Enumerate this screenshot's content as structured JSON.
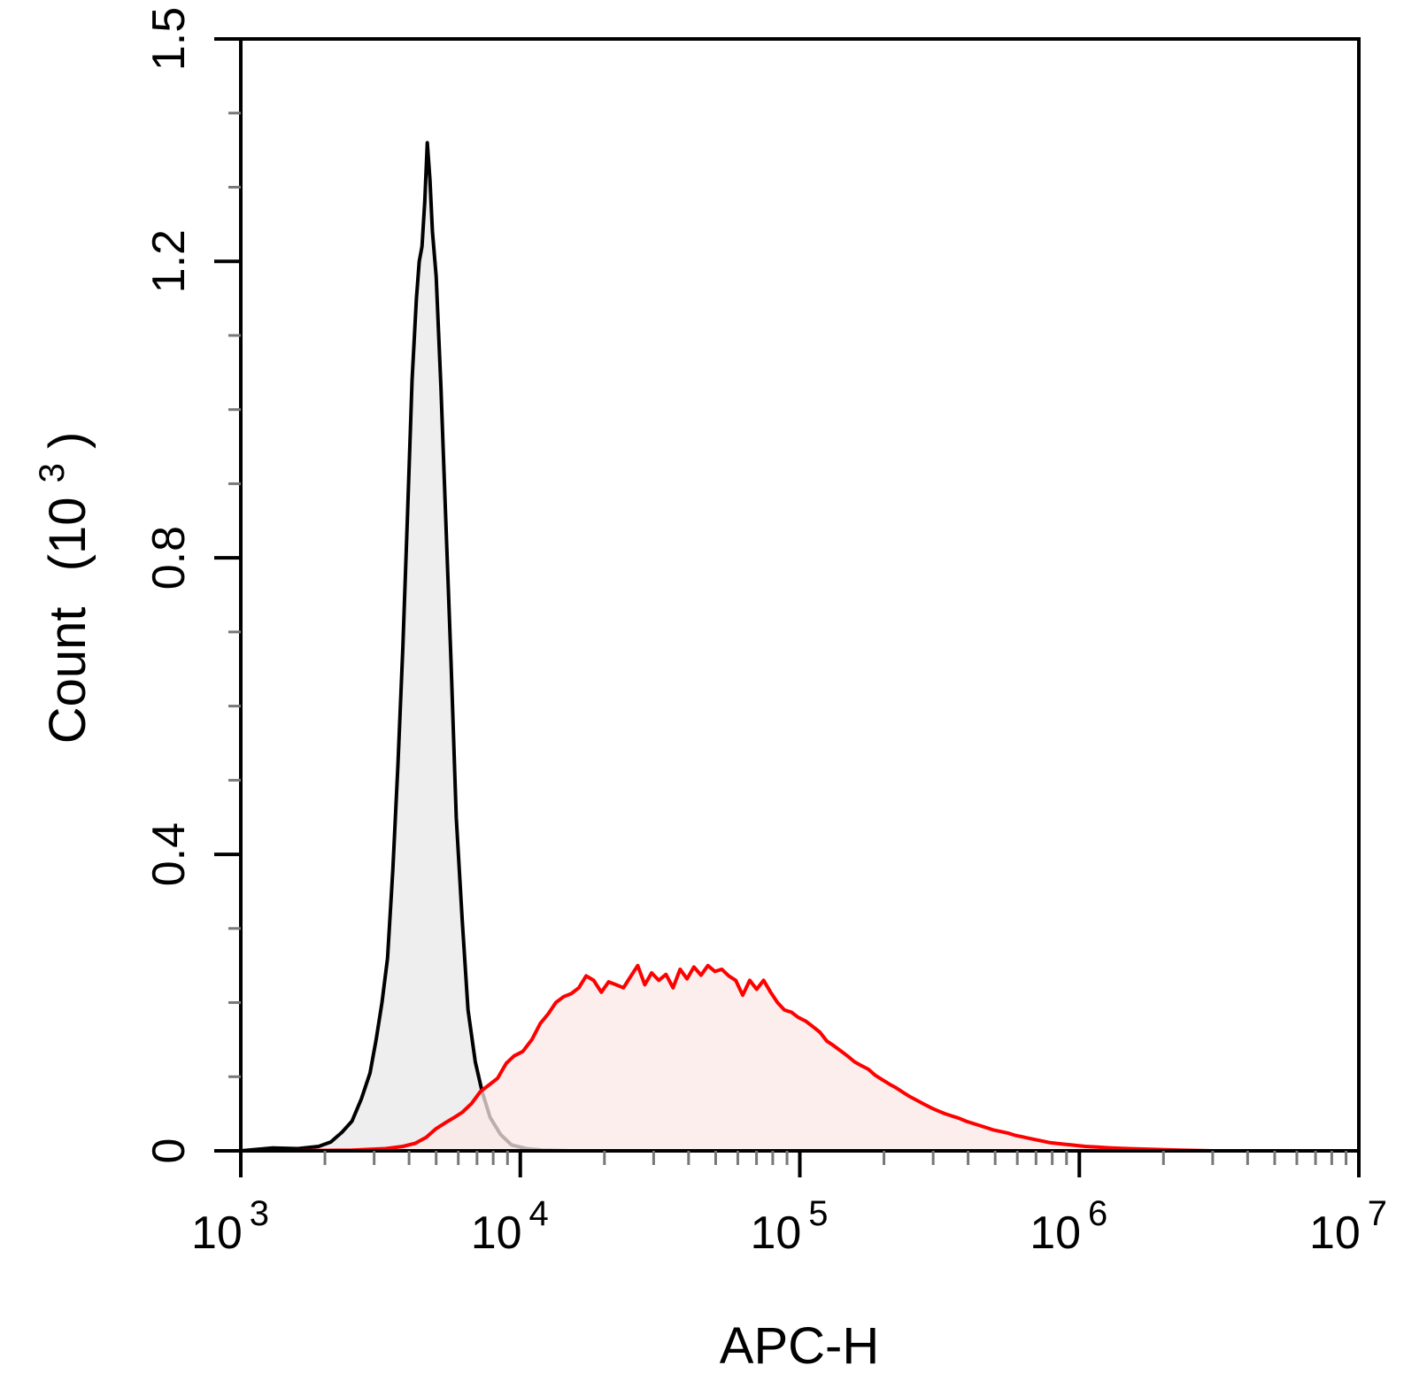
{
  "chart_data": {
    "type": "area",
    "xlabel": "APC-H",
    "ylabel": "Count",
    "ylabel_unit_prefix": "(10",
    "ylabel_unit_exponent": "3",
    "ylabel_unit_suffix": ")",
    "x_scale": "log",
    "xlim": [
      1000,
      10000000
    ],
    "ylim": [
      0,
      1.5
    ],
    "x_ticks": [
      {
        "base": "10",
        "exp": "3",
        "value": 1000
      },
      {
        "base": "10",
        "exp": "4",
        "value": 10000
      },
      {
        "base": "10",
        "exp": "5",
        "value": 100000
      },
      {
        "base": "10",
        "exp": "6",
        "value": 1000000
      },
      {
        "base": "10",
        "exp": "7",
        "value": 10000000
      }
    ],
    "y_ticks": [
      {
        "label": "0",
        "value": 0
      },
      {
        "label": "0.4",
        "value": 0.4
      },
      {
        "label": "0.8",
        "value": 0.8
      },
      {
        "label": "1.2",
        "value": 1.2
      },
      {
        "label": "1.5",
        "value": 1.5
      }
    ],
    "grid": false,
    "series": [
      {
        "stroke": "#000000",
        "fill": "#e8e8e8",
        "points": [
          [
            1000,
            0.0
          ],
          [
            1300,
            0.004
          ],
          [
            1600,
            0.003
          ],
          [
            1900,
            0.006
          ],
          [
            2100,
            0.012
          ],
          [
            2300,
            0.025
          ],
          [
            2500,
            0.04
          ],
          [
            2700,
            0.07
          ],
          [
            2900,
            0.105
          ],
          [
            3050,
            0.15
          ],
          [
            3200,
            0.2
          ],
          [
            3350,
            0.26
          ],
          [
            3500,
            0.38
          ],
          [
            3650,
            0.52
          ],
          [
            3800,
            0.68
          ],
          [
            3950,
            0.86
          ],
          [
            4100,
            1.04
          ],
          [
            4250,
            1.15
          ],
          [
            4350,
            1.2
          ],
          [
            4450,
            1.22
          ],
          [
            4550,
            1.28
          ],
          [
            4650,
            1.36
          ],
          [
            4750,
            1.31
          ],
          [
            4850,
            1.24
          ],
          [
            5000,
            1.18
          ],
          [
            5200,
            1.03
          ],
          [
            5400,
            0.86
          ],
          [
            5650,
            0.66
          ],
          [
            5900,
            0.45
          ],
          [
            6200,
            0.31
          ],
          [
            6500,
            0.19
          ],
          [
            6900,
            0.12
          ],
          [
            7300,
            0.08
          ],
          [
            7800,
            0.045
          ],
          [
            8500,
            0.022
          ],
          [
            9300,
            0.008
          ],
          [
            10500,
            0.003
          ],
          [
            12000,
            0.001
          ],
          [
            15000,
            0.0
          ]
        ]
      },
      {
        "stroke": "#ff0000",
        "fill": "#fce8e8",
        "points": [
          [
            1500,
            0.0
          ],
          [
            2500,
            0.001
          ],
          [
            3300,
            0.003
          ],
          [
            3800,
            0.006
          ],
          [
            4200,
            0.01
          ],
          [
            4600,
            0.018
          ],
          [
            5000,
            0.03
          ],
          [
            5400,
            0.038
          ],
          [
            5800,
            0.045
          ],
          [
            6200,
            0.052
          ],
          [
            6700,
            0.064
          ],
          [
            7200,
            0.08
          ],
          [
            7800,
            0.09
          ],
          [
            8300,
            0.098
          ],
          [
            8900,
            0.118
          ],
          [
            9500,
            0.128
          ],
          [
            10200,
            0.134
          ],
          [
            11000,
            0.15
          ],
          [
            11800,
            0.172
          ],
          [
            12600,
            0.185
          ],
          [
            13400,
            0.2
          ],
          [
            14300,
            0.208
          ],
          [
            15200,
            0.212
          ],
          [
            16200,
            0.22
          ],
          [
            17200,
            0.236
          ],
          [
            18300,
            0.23
          ],
          [
            19500,
            0.214
          ],
          [
            20700,
            0.228
          ],
          [
            22000,
            0.224
          ],
          [
            23400,
            0.22
          ],
          [
            24800,
            0.235
          ],
          [
            26300,
            0.25
          ],
          [
            27900,
            0.224
          ],
          [
            29500,
            0.24
          ],
          [
            31300,
            0.23
          ],
          [
            33200,
            0.238
          ],
          [
            35200,
            0.22
          ],
          [
            37300,
            0.245
          ],
          [
            39500,
            0.232
          ],
          [
            41800,
            0.248
          ],
          [
            44300,
            0.237
          ],
          [
            46900,
            0.25
          ],
          [
            49700,
            0.242
          ],
          [
            52600,
            0.245
          ],
          [
            55700,
            0.236
          ],
          [
            59000,
            0.23
          ],
          [
            62500,
            0.21
          ],
          [
            66200,
            0.23
          ],
          [
            70100,
            0.218
          ],
          [
            74200,
            0.23
          ],
          [
            78600,
            0.214
          ],
          [
            83200,
            0.2
          ],
          [
            88100,
            0.19
          ],
          [
            93300,
            0.187
          ],
          [
            98800,
            0.18
          ],
          [
            105000,
            0.175
          ],
          [
            111000,
            0.168
          ],
          [
            118000,
            0.16
          ],
          [
            125000,
            0.148
          ],
          [
            132000,
            0.142
          ],
          [
            140000,
            0.135
          ],
          [
            148000,
            0.128
          ],
          [
            157000,
            0.12
          ],
          [
            166000,
            0.115
          ],
          [
            176000,
            0.11
          ],
          [
            186000,
            0.102
          ],
          [
            197000,
            0.096
          ],
          [
            209000,
            0.09
          ],
          [
            221000,
            0.085
          ],
          [
            234000,
            0.079
          ],
          [
            248000,
            0.073
          ],
          [
            263000,
            0.068
          ],
          [
            278000,
            0.063
          ],
          [
            295000,
            0.058
          ],
          [
            312000,
            0.054
          ],
          [
            331000,
            0.05
          ],
          [
            350000,
            0.047
          ],
          [
            371000,
            0.044
          ],
          [
            393000,
            0.04
          ],
          [
            416000,
            0.037
          ],
          [
            441000,
            0.034
          ],
          [
            467000,
            0.031
          ],
          [
            495000,
            0.028
          ],
          [
            524000,
            0.026
          ],
          [
            555000,
            0.024
          ],
          [
            588000,
            0.021
          ],
          [
            623000,
            0.019
          ],
          [
            660000,
            0.017
          ],
          [
            699000,
            0.015
          ],
          [
            741000,
            0.013
          ],
          [
            785000,
            0.011
          ],
          [
            831000,
            0.01
          ],
          [
            880000,
            0.009
          ],
          [
            933000,
            0.008
          ],
          [
            988000,
            0.007
          ],
          [
            1050000,
            0.006
          ],
          [
            1160000,
            0.005
          ],
          [
            1300000,
            0.004
          ],
          [
            1500000,
            0.003
          ],
          [
            1800000,
            0.002
          ],
          [
            2300000,
            0.001
          ],
          [
            3000000,
            0.0
          ],
          [
            5000000,
            0.0
          ],
          [
            10000000,
            0.0
          ]
        ]
      }
    ]
  }
}
